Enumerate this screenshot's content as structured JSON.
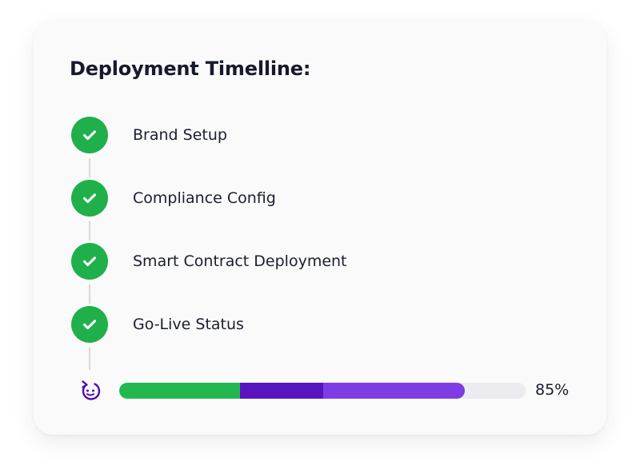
{
  "timeline": {
    "title": "Deployment Timelline:",
    "steps": [
      {
        "label": "Brand Setup",
        "status": "complete"
      },
      {
        "label": "Compliance Config",
        "status": "complete"
      },
      {
        "label": "Smart Contract Deployment",
        "status": "complete"
      },
      {
        "label": "Go-Live Status",
        "status": "complete"
      }
    ],
    "progress": {
      "percent": 85,
      "label": "85%",
      "icon": "rotate-refresh-icon"
    }
  },
  "colors": {
    "complete": "#20b04b",
    "progress_green": "#22b84f",
    "progress_purple_dark": "#5a14bf",
    "progress_purple_light": "#7e3ce3",
    "track": "#ebebf0",
    "text": "#171a2b"
  }
}
